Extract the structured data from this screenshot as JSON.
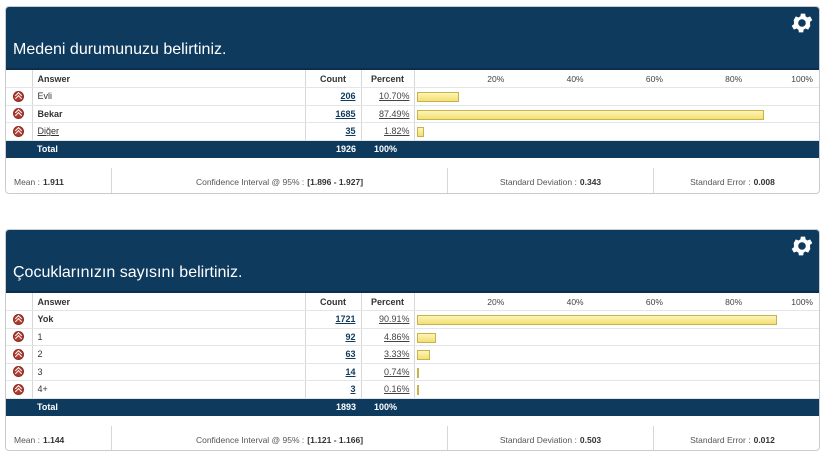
{
  "columns": {
    "answer": "Answer",
    "count": "Count",
    "percent": "Percent",
    "ticks": [
      "20%",
      "40%",
      "60%",
      "80%",
      "100%"
    ]
  },
  "colors": {
    "header_bg": "#0e3a5e",
    "bar_fill": "#f3df72",
    "icon_red": "#b23a2e"
  },
  "panels": [
    {
      "title": "Medeni durumunuzu belirtiniz.",
      "rows": [
        {
          "answer": "Evli",
          "count": "206",
          "percent": "10.70%",
          "value": 10.7
        },
        {
          "answer": "Bekar",
          "count": "1685",
          "percent": "87.49%",
          "value": 87.49
        },
        {
          "answer": "Diğer",
          "count": "35",
          "percent": "1.82%",
          "value": 1.82
        }
      ],
      "total": {
        "label": "Total",
        "count": "1926",
        "percent": "100%"
      },
      "stats": {
        "mean_label": "Mean :",
        "mean": "1.911",
        "ci_label": "Confidence Interval @ 95% :",
        "ci": "[1.896 - 1.927]",
        "sd_label": "Standard Deviation :",
        "sd": "0.343",
        "se_label": "Standard Error :",
        "se": "0.008"
      }
    },
    {
      "title": "Çocuklarınızın sayısını belirtiniz.",
      "rows": [
        {
          "answer": "Yok",
          "count": "1721",
          "percent": "90.91%",
          "value": 90.91
        },
        {
          "answer": "1",
          "count": "92",
          "percent": "4.86%",
          "value": 4.86
        },
        {
          "answer": "2",
          "count": "63",
          "percent": "3.33%",
          "value": 3.33
        },
        {
          "answer": "3",
          "count": "14",
          "percent": "0.74%",
          "value": 0.74
        },
        {
          "answer": "4+",
          "count": "3",
          "percent": "0.16%",
          "value": 0.16
        }
      ],
      "total": {
        "label": "Total",
        "count": "1893",
        "percent": "100%"
      },
      "stats": {
        "mean_label": "Mean :",
        "mean": "1.144",
        "ci_label": "Confidence Interval @ 95% :",
        "ci": "[1.121 - 1.166]",
        "sd_label": "Standard Deviation :",
        "sd": "0.503",
        "se_label": "Standard Error :",
        "se": "0.012"
      }
    }
  ]
}
